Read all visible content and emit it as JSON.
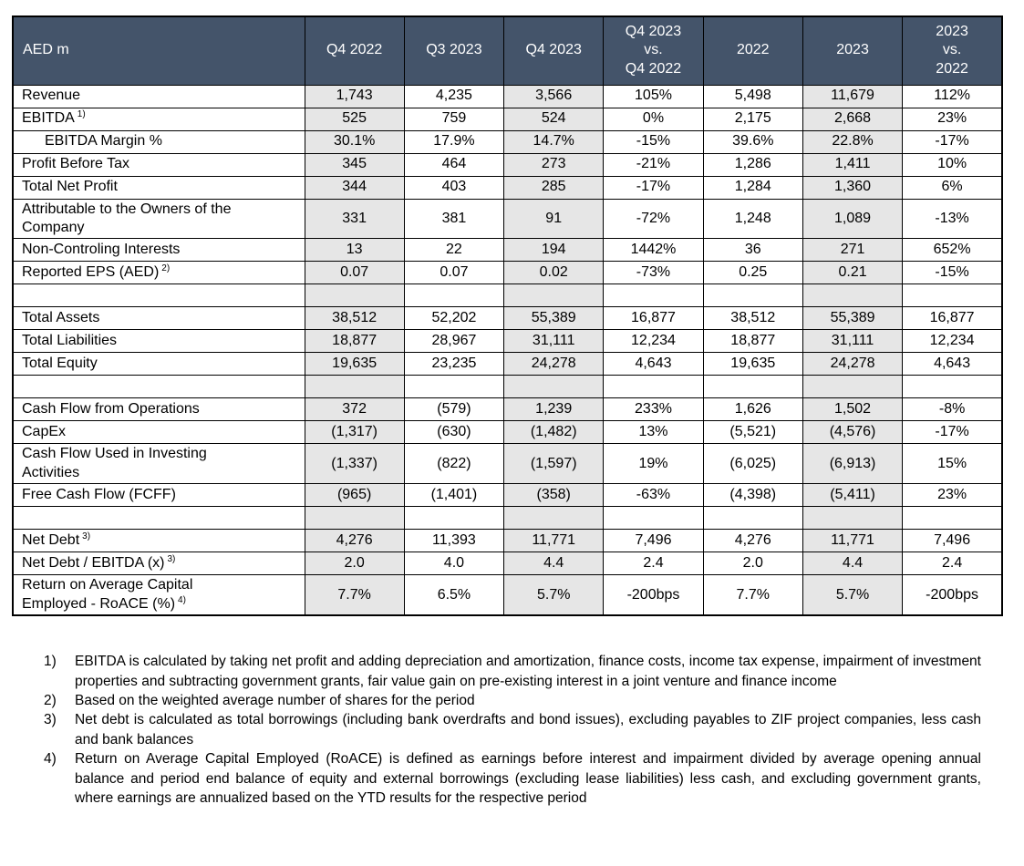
{
  "colors": {
    "header_bg": "#44546A",
    "header_text": "#FFFFFF",
    "shaded_column": "#E6E6E6",
    "grid_border": "#000000",
    "text": "#000000"
  },
  "table": {
    "corner_label": "AED m",
    "columns": [
      {
        "label": "Q4 2022",
        "shaded": true
      },
      {
        "label": "Q3 2023",
        "shaded": false
      },
      {
        "label": "Q4 2023",
        "shaded": true
      },
      {
        "label": "Q4 2023\nvs.\nQ4 2022",
        "shaded": false
      },
      {
        "label": "2022",
        "shaded": false
      },
      {
        "label": "2023",
        "shaded": true
      },
      {
        "label": "2023\nvs.\n2022",
        "shaded": false
      }
    ],
    "rows": [
      {
        "label": "Revenue",
        "values": [
          "1,743",
          "4,235",
          "3,566",
          "105%",
          "5,498",
          "11,679",
          "112%"
        ]
      },
      {
        "label": "EBITDA",
        "sup": "1)",
        "values": [
          "525",
          "759",
          "524",
          "0%",
          "2,175",
          "2,668",
          "23%"
        ]
      },
      {
        "label": "EBITDA Margin %",
        "indent": true,
        "values": [
          "30.1%",
          "17.9%",
          "14.7%",
          "-15%",
          "39.6%",
          "22.8%",
          "-17%"
        ]
      },
      {
        "label": "Profit Before Tax",
        "values": [
          "345",
          "464",
          "273",
          "-21%",
          "1,286",
          "1,411",
          "10%"
        ]
      },
      {
        "label": "Total Net Profit",
        "values": [
          "344",
          "403",
          "285",
          "-17%",
          "1,284",
          "1,360",
          "6%"
        ]
      },
      {
        "label": "Attributable to the Owners of the\nCompany",
        "values": [
          "331",
          "381",
          "91",
          "-72%",
          "1,248",
          "1,089",
          "-13%"
        ]
      },
      {
        "label": "Non-Controling Interests",
        "values": [
          "13",
          "22",
          "194",
          "1442%",
          "36",
          "271",
          "652%"
        ]
      },
      {
        "label": "Reported EPS (AED)",
        "sup": "2)",
        "values": [
          "0.07",
          "0.07",
          "0.02",
          "-73%",
          "0.25",
          "0.21",
          "-15%"
        ]
      },
      {
        "blank": true
      },
      {
        "label": "Total Assets",
        "values": [
          "38,512",
          "52,202",
          "55,389",
          "16,877",
          "38,512",
          "55,389",
          "16,877"
        ]
      },
      {
        "label": "Total Liabilities",
        "values": [
          "18,877",
          "28,967",
          "31,111",
          "12,234",
          "18,877",
          "31,111",
          "12,234"
        ]
      },
      {
        "label": "Total Equity",
        "values": [
          "19,635",
          "23,235",
          "24,278",
          "4,643",
          "19,635",
          "24,278",
          "4,643"
        ]
      },
      {
        "blank": true
      },
      {
        "label": "Cash Flow from Operations",
        "values": [
          "372",
          "(579)",
          "1,239",
          "233%",
          "1,626",
          "1,502",
          "-8%"
        ]
      },
      {
        "label": "CapEx",
        "values": [
          "(1,317)",
          "(630)",
          "(1,482)",
          "13%",
          "(5,521)",
          "(4,576)",
          "-17%"
        ]
      },
      {
        "label": "Cash Flow Used in Investing\nActivities",
        "values": [
          "(1,337)",
          "(822)",
          "(1,597)",
          "19%",
          "(6,025)",
          "(6,913)",
          "15%"
        ]
      },
      {
        "label": "Free Cash Flow (FCFF)",
        "values": [
          "(965)",
          "(1,401)",
          "(358)",
          "-63%",
          "(4,398)",
          "(5,411)",
          "23%"
        ]
      },
      {
        "blank": true
      },
      {
        "label": "Net Debt",
        "sup": "3)",
        "values": [
          "4,276",
          "11,393",
          "11,771",
          "7,496",
          "4,276",
          "11,771",
          "7,496"
        ]
      },
      {
        "label": "Net Debt / EBITDA (x)",
        "sup": "3)",
        "values": [
          "2.0",
          "4.0",
          "4.4",
          "2.4",
          "2.0",
          "4.4",
          "2.4"
        ]
      },
      {
        "label": "Return on Average Capital\nEmployed - RoACE (%)",
        "sup": "4)",
        "values": [
          "7.7%",
          "6.5%",
          "5.7%",
          "-200bps",
          "7.7%",
          "5.7%",
          "-200bps"
        ]
      }
    ]
  },
  "footnotes": [
    {
      "num": "1)",
      "text": "EBITDA is calculated by taking net profit and adding depreciation and amortization, finance costs, income tax expense, impairment of investment properties and subtracting government grants, fair value gain on pre-existing interest in a joint venture and finance income"
    },
    {
      "num": "2)",
      "text": "Based on the weighted average number of shares for the period"
    },
    {
      "num": "3)",
      "text": "Net debt is calculated as total borrowings (including bank overdrafts and bond issues), excluding payables to ZIF project companies, less cash and bank balances"
    },
    {
      "num": "4)",
      "text": "Return on Average Capital Employed (RoACE) is defined as earnings before interest and impairment divided by average opening annual balance and period end balance of equity and external borrowings (excluding lease liabilities) less cash, and excluding government grants, where earnings are annualized based on the YTD results for the respective period"
    }
  ]
}
